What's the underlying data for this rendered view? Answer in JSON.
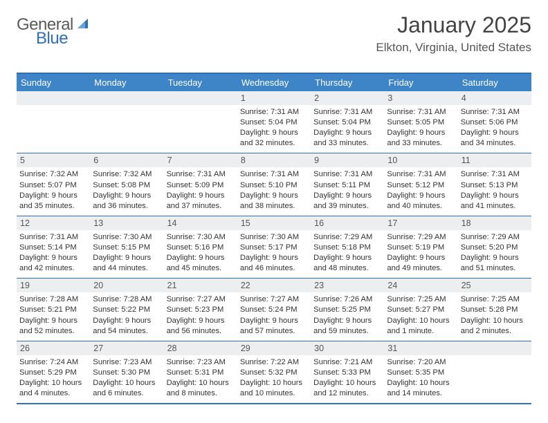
{
  "logo": {
    "text1": "General",
    "text2": "Blue"
  },
  "title": "January 2025",
  "location": "Elkton, Virginia, United States",
  "colors": {
    "header_bar": "#3e85c7",
    "rule": "#2d6fb8",
    "daynum_bg": "#eceef0",
    "logo_gray": "#5a5a5a",
    "logo_blue": "#2d6fb8"
  },
  "days_of_week": [
    "Sunday",
    "Monday",
    "Tuesday",
    "Wednesday",
    "Thursday",
    "Friday",
    "Saturday"
  ],
  "weeks": [
    [
      {
        "blank": true
      },
      {
        "blank": true
      },
      {
        "blank": true
      },
      {
        "n": "1",
        "sr": "7:31 AM",
        "ss": "5:04 PM",
        "dl": "9 hours and 32 minutes."
      },
      {
        "n": "2",
        "sr": "7:31 AM",
        "ss": "5:04 PM",
        "dl": "9 hours and 33 minutes."
      },
      {
        "n": "3",
        "sr": "7:31 AM",
        "ss": "5:05 PM",
        "dl": "9 hours and 33 minutes."
      },
      {
        "n": "4",
        "sr": "7:31 AM",
        "ss": "5:06 PM",
        "dl": "9 hours and 34 minutes."
      }
    ],
    [
      {
        "n": "5",
        "sr": "7:32 AM",
        "ss": "5:07 PM",
        "dl": "9 hours and 35 minutes."
      },
      {
        "n": "6",
        "sr": "7:32 AM",
        "ss": "5:08 PM",
        "dl": "9 hours and 36 minutes."
      },
      {
        "n": "7",
        "sr": "7:31 AM",
        "ss": "5:09 PM",
        "dl": "9 hours and 37 minutes."
      },
      {
        "n": "8",
        "sr": "7:31 AM",
        "ss": "5:10 PM",
        "dl": "9 hours and 38 minutes."
      },
      {
        "n": "9",
        "sr": "7:31 AM",
        "ss": "5:11 PM",
        "dl": "9 hours and 39 minutes."
      },
      {
        "n": "10",
        "sr": "7:31 AM",
        "ss": "5:12 PM",
        "dl": "9 hours and 40 minutes."
      },
      {
        "n": "11",
        "sr": "7:31 AM",
        "ss": "5:13 PM",
        "dl": "9 hours and 41 minutes."
      }
    ],
    [
      {
        "n": "12",
        "sr": "7:31 AM",
        "ss": "5:14 PM",
        "dl": "9 hours and 42 minutes."
      },
      {
        "n": "13",
        "sr": "7:30 AM",
        "ss": "5:15 PM",
        "dl": "9 hours and 44 minutes."
      },
      {
        "n": "14",
        "sr": "7:30 AM",
        "ss": "5:16 PM",
        "dl": "9 hours and 45 minutes."
      },
      {
        "n": "15",
        "sr": "7:30 AM",
        "ss": "5:17 PM",
        "dl": "9 hours and 46 minutes."
      },
      {
        "n": "16",
        "sr": "7:29 AM",
        "ss": "5:18 PM",
        "dl": "9 hours and 48 minutes."
      },
      {
        "n": "17",
        "sr": "7:29 AM",
        "ss": "5:19 PM",
        "dl": "9 hours and 49 minutes."
      },
      {
        "n": "18",
        "sr": "7:29 AM",
        "ss": "5:20 PM",
        "dl": "9 hours and 51 minutes."
      }
    ],
    [
      {
        "n": "19",
        "sr": "7:28 AM",
        "ss": "5:21 PM",
        "dl": "9 hours and 52 minutes."
      },
      {
        "n": "20",
        "sr": "7:28 AM",
        "ss": "5:22 PM",
        "dl": "9 hours and 54 minutes."
      },
      {
        "n": "21",
        "sr": "7:27 AM",
        "ss": "5:23 PM",
        "dl": "9 hours and 56 minutes."
      },
      {
        "n": "22",
        "sr": "7:27 AM",
        "ss": "5:24 PM",
        "dl": "9 hours and 57 minutes."
      },
      {
        "n": "23",
        "sr": "7:26 AM",
        "ss": "5:25 PM",
        "dl": "9 hours and 59 minutes."
      },
      {
        "n": "24",
        "sr": "7:25 AM",
        "ss": "5:27 PM",
        "dl": "10 hours and 1 minute."
      },
      {
        "n": "25",
        "sr": "7:25 AM",
        "ss": "5:28 PM",
        "dl": "10 hours and 2 minutes."
      }
    ],
    [
      {
        "n": "26",
        "sr": "7:24 AM",
        "ss": "5:29 PM",
        "dl": "10 hours and 4 minutes."
      },
      {
        "n": "27",
        "sr": "7:23 AM",
        "ss": "5:30 PM",
        "dl": "10 hours and 6 minutes."
      },
      {
        "n": "28",
        "sr": "7:23 AM",
        "ss": "5:31 PM",
        "dl": "10 hours and 8 minutes."
      },
      {
        "n": "29",
        "sr": "7:22 AM",
        "ss": "5:32 PM",
        "dl": "10 hours and 10 minutes."
      },
      {
        "n": "30",
        "sr": "7:21 AM",
        "ss": "5:33 PM",
        "dl": "10 hours and 12 minutes."
      },
      {
        "n": "31",
        "sr": "7:20 AM",
        "ss": "5:35 PM",
        "dl": "10 hours and 14 minutes."
      },
      {
        "blank": true
      }
    ]
  ],
  "labels": {
    "sunrise": "Sunrise:",
    "sunset": "Sunset:",
    "daylight": "Daylight:"
  }
}
